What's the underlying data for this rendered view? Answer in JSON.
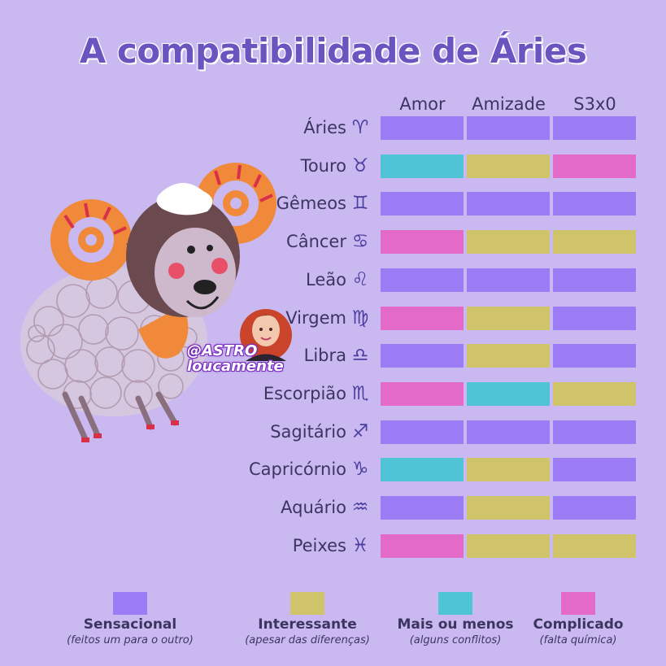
{
  "title": "A compatibilidade de Áries",
  "columns": [
    "Amor",
    "Amizade",
    "S3x0"
  ],
  "colors": {
    "sensacional": "#9b7cf4",
    "interessante": "#cfc46a",
    "mais_ou_menos": "#4fc4d6",
    "complicado": "#e46ac9"
  },
  "rows": [
    {
      "label": "Áries",
      "glyph": "♈",
      "ratings": [
        "sensacional",
        "sensacional",
        "sensacional"
      ]
    },
    {
      "label": "Touro",
      "glyph": "♉",
      "ratings": [
        "mais_ou_menos",
        "interessante",
        "complicado"
      ]
    },
    {
      "label": "Gêmeos",
      "glyph": "♊",
      "ratings": [
        "sensacional",
        "sensacional",
        "sensacional"
      ]
    },
    {
      "label": "Câncer",
      "glyph": "♋",
      "ratings": [
        "complicado",
        "interessante",
        "interessante"
      ]
    },
    {
      "label": "Leão",
      "glyph": "♌",
      "ratings": [
        "sensacional",
        "sensacional",
        "sensacional"
      ]
    },
    {
      "label": "Virgem",
      "glyph": "♍",
      "ratings": [
        "complicado",
        "interessante",
        "sensacional"
      ]
    },
    {
      "label": "Libra",
      "glyph": "♎",
      "ratings": [
        "sensacional",
        "interessante",
        "sensacional"
      ]
    },
    {
      "label": "Escorpião",
      "glyph": "♏",
      "ratings": [
        "complicado",
        "mais_ou_menos",
        "interessante"
      ]
    },
    {
      "label": "Sagitário",
      "glyph": "♐",
      "ratings": [
        "sensacional",
        "sensacional",
        "sensacional"
      ]
    },
    {
      "label": "Capricórnio",
      "glyph": "♑",
      "ratings": [
        "mais_ou_menos",
        "interessante",
        "sensacional"
      ]
    },
    {
      "label": "Aquário",
      "glyph": "♒",
      "ratings": [
        "sensacional",
        "interessante",
        "sensacional"
      ]
    },
    {
      "label": "Peixes",
      "glyph": "♓",
      "ratings": [
        "complicado",
        "interessante",
        "interessante"
      ]
    }
  ],
  "legend": [
    {
      "key": "sensacional",
      "label": "Sensacional",
      "sub": "(feitos um para o outro)"
    },
    {
      "key": "interessante",
      "label": "Interessante",
      "sub": "(apesar das diferenças)"
    },
    {
      "key": "mais_ou_menos",
      "label": "Mais ou menos",
      "sub": "(alguns conflitos)"
    },
    {
      "key": "complicado",
      "label": "Complicado",
      "sub": "(falta química)"
    }
  ],
  "handle": {
    "line1": "@ASTRO",
    "line2": "loucamente"
  },
  "icons": {
    "mascot": "ram-illustration",
    "avatar": "woman-avatar"
  }
}
